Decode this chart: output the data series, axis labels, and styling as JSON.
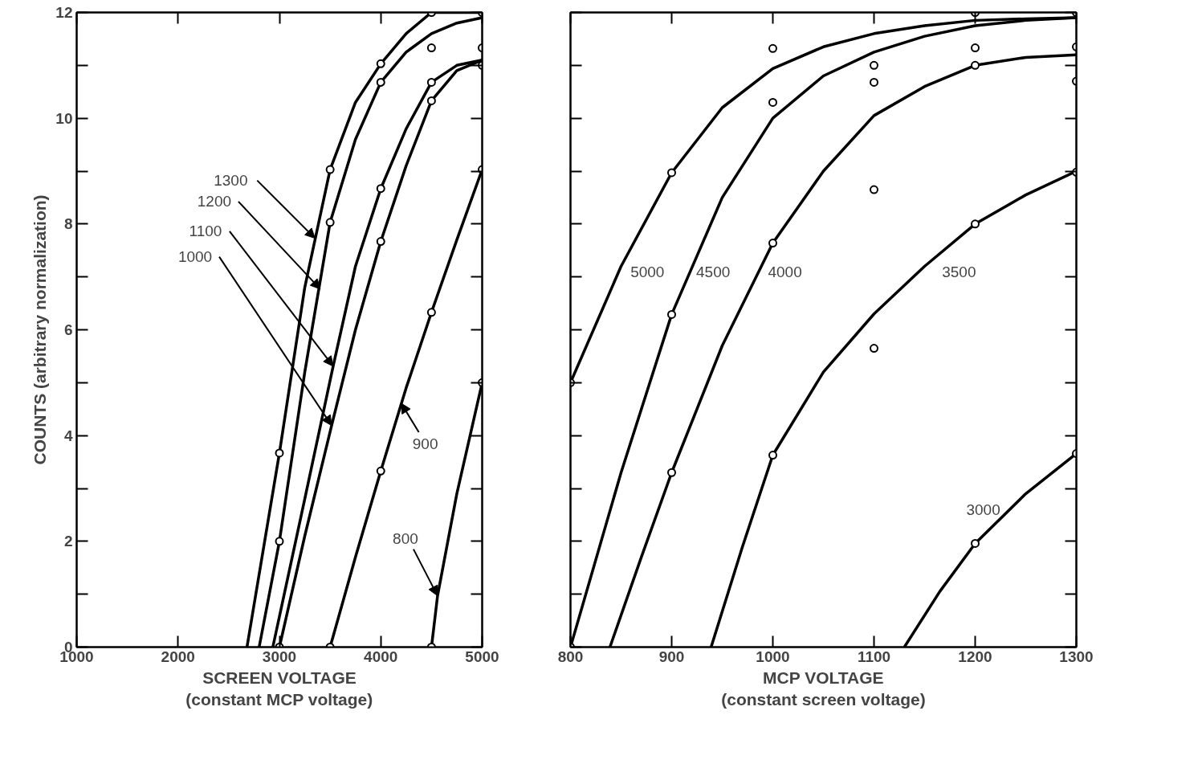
{
  "chart_data": [
    {
      "type": "line",
      "xlabel": "SCREEN VOLTAGE\n(constant MCP voltage)",
      "ylabel": "COUNTS (arbitrary normalization)",
      "xlim": [
        1000,
        5000
      ],
      "xticks": [
        1000,
        2000,
        3000,
        4000,
        5000
      ],
      "ylim": [
        0,
        12
      ],
      "yticks": [
        0,
        {
          "value": 1,
          "label": null
        },
        2,
        {
          "value": 3,
          "label": null
        },
        4,
        {
          "value": 5,
          "label": null
        },
        6,
        {
          "value": 7,
          "label": null
        },
        8,
        {
          "value": 9,
          "label": null
        },
        10,
        {
          "value": 11,
          "label": null
        },
        12
      ],
      "grid": false,
      "line_style": "solid",
      "series": [
        {
          "color": "#000000",
          "x": [
            2680,
            3000,
            3250,
            3500,
            3750,
            4000,
            4250,
            4500,
            5000
          ],
          "values": [
            0,
            3.67,
            6.8,
            9.03,
            10.3,
            11.03,
            11.6,
            12,
            12
          ]
        },
        {
          "color": "#000000",
          "x": [
            2800,
            3000,
            3250,
            3500,
            3750,
            4000,
            4250,
            4500,
            4750,
            5000
          ],
          "values": [
            0,
            2.0,
            5.2,
            8.03,
            9.6,
            10.68,
            11.25,
            11.6,
            11.8,
            11.9
          ]
        },
        {
          "color": "#000000",
          "x": [
            2935,
            3250,
            3530,
            3750,
            4000,
            4250,
            4500,
            4750,
            5000
          ],
          "values": [
            0,
            2.8,
            5.31,
            7.2,
            8.67,
            9.8,
            10.68,
            11.0,
            11.1
          ]
        },
        {
          "color": "#000000",
          "x": [
            3000,
            3250,
            3515,
            3750,
            4000,
            4250,
            4500,
            4750,
            5000
          ],
          "values": [
            0,
            2.1,
            4.19,
            6.0,
            7.67,
            9.1,
            10.33,
            10.9,
            11.1
          ]
        },
        {
          "color": "#000000",
          "x": [
            3500,
            3750,
            4000,
            4250,
            4500,
            4750,
            5000
          ],
          "values": [
            0,
            1.7,
            3.33,
            4.9,
            6.33,
            7.7,
            9.03
          ]
        },
        {
          "color": "#000000",
          "x": [
            4500,
            4560,
            4750,
            5000
          ],
          "values": [
            0,
            0.97,
            2.9,
            5.0
          ]
        },
        {
          "type": "scatter",
          "color": "#000000",
          "marker": "circle",
          "x": [
            3000,
            3000,
            3000,
            3500,
            3500,
            3500,
            4000,
            4000,
            4000,
            4000,
            4000,
            4500,
            4500,
            4500,
            4500,
            4500,
            4500,
            5000,
            5000,
            5000,
            5000,
            5000
          ],
          "values": [
            3.67,
            2.0,
            0,
            9.03,
            8.03,
            0,
            11.03,
            10.68,
            8.67,
            7.67,
            3.33,
            12,
            11.33,
            10.68,
            10.33,
            6.33,
            0,
            12,
            11.33,
            11.0,
            9.03,
            5.0
          ]
        }
      ],
      "annotations": [
        {
          "text": "1300",
          "x": 3351,
          "y": 7.73
        },
        {
          "text": "1200",
          "x": 3403,
          "y": 6.77
        },
        {
          "text": "1100",
          "x": 3530,
          "y": 5.31
        },
        {
          "text": "1000",
          "x": 3515,
          "y": 4.19
        },
        {
          "text": "900",
          "x": 4201,
          "y": 4.61
        },
        {
          "text": "800",
          "x": 4560,
          "y": 0.97
        }
      ]
    },
    {
      "type": "line",
      "xlabel": "MCP VOLTAGE\n(constant screen voltage)",
      "xlim": [
        800,
        1300
      ],
      "xticks": [
        800,
        900,
        1000,
        1100,
        1200,
        1300
      ],
      "ylim": [
        0,
        12
      ],
      "yticks": [
        0,
        {
          "value": 1,
          "label": null
        },
        2,
        {
          "value": 3,
          "label": null
        },
        4,
        {
          "value": 5,
          "label": null
        },
        6,
        {
          "value": 7,
          "label": null
        },
        8,
        {
          "value": 9,
          "label": null
        },
        10,
        {
          "value": 11,
          "label": null
        },
        12
      ],
      "tick_labels": "x",
      "grid": false,
      "line_style": "solid",
      "series": [
        {
          "color": "#000000",
          "x": [
            800,
            850,
            900,
            950,
            1000,
            1050,
            1100,
            1150,
            1200,
            1250,
            1300
          ],
          "values": [
            5.0,
            7.2,
            8.97,
            10.2,
            10.94,
            11.35,
            11.6,
            11.75,
            11.85,
            11.88,
            11.9
          ]
        },
        {
          "color": "#000000",
          "x": [
            800,
            850,
            900,
            950,
            1000,
            1050,
            1100,
            1150,
            1200,
            1250,
            1300
          ],
          "values": [
            0,
            3.3,
            6.29,
            8.5,
            10.0,
            10.8,
            11.25,
            11.55,
            11.75,
            11.85,
            11.9
          ]
        },
        {
          "color": "#000000",
          "x": [
            839,
            870,
            900,
            950,
            1000,
            1050,
            1100,
            1150,
            1200,
            1250,
            1300
          ],
          "values": [
            0,
            1.7,
            3.3,
            5.7,
            7.64,
            9.0,
            10.05,
            10.6,
            11.0,
            11.15,
            11.2
          ]
        },
        {
          "color": "#000000",
          "x": [
            939,
            970,
            1000,
            1050,
            1100,
            1150,
            1200,
            1250,
            1300
          ],
          "values": [
            0,
            1.9,
            3.63,
            5.2,
            6.3,
            7.2,
            8.0,
            8.55,
            9.0
          ]
        },
        {
          "color": "#000000",
          "x": [
            1130,
            1165,
            1200,
            1250,
            1300
          ],
          "values": [
            0,
            1.05,
            1.96,
            2.9,
            3.66
          ]
        },
        {
          "type": "scatter",
          "color": "#000000",
          "marker": "circle",
          "x": [
            800,
            800,
            900,
            900,
            900,
            1000,
            1000,
            1000,
            1000,
            1100,
            1100,
            1100,
            1100,
            1200,
            1200,
            1200,
            1200,
            1200,
            1300,
            1300,
            1300,
            1300,
            1300
          ],
          "values": [
            5.0,
            0,
            8.97,
            6.29,
            3.3,
            11.32,
            10.3,
            7.64,
            3.63,
            11.0,
            10.68,
            8.65,
            5.65,
            12,
            11.33,
            11.0,
            8.0,
            1.96,
            12,
            11.35,
            10.7,
            8.98,
            3.66
          ]
        }
      ],
      "annotations": [
        {
          "text": "5000",
          "x": 876,
          "y": 7.1
        },
        {
          "text": "4500",
          "x": 941,
          "y": 7.1
        },
        {
          "text": "4000",
          "x": 1012,
          "y": 7.1
        },
        {
          "text": "3500",
          "x": 1184,
          "y": 7.1
        },
        {
          "text": "3000",
          "x": 1208,
          "y": 2.6
        }
      ]
    }
  ]
}
